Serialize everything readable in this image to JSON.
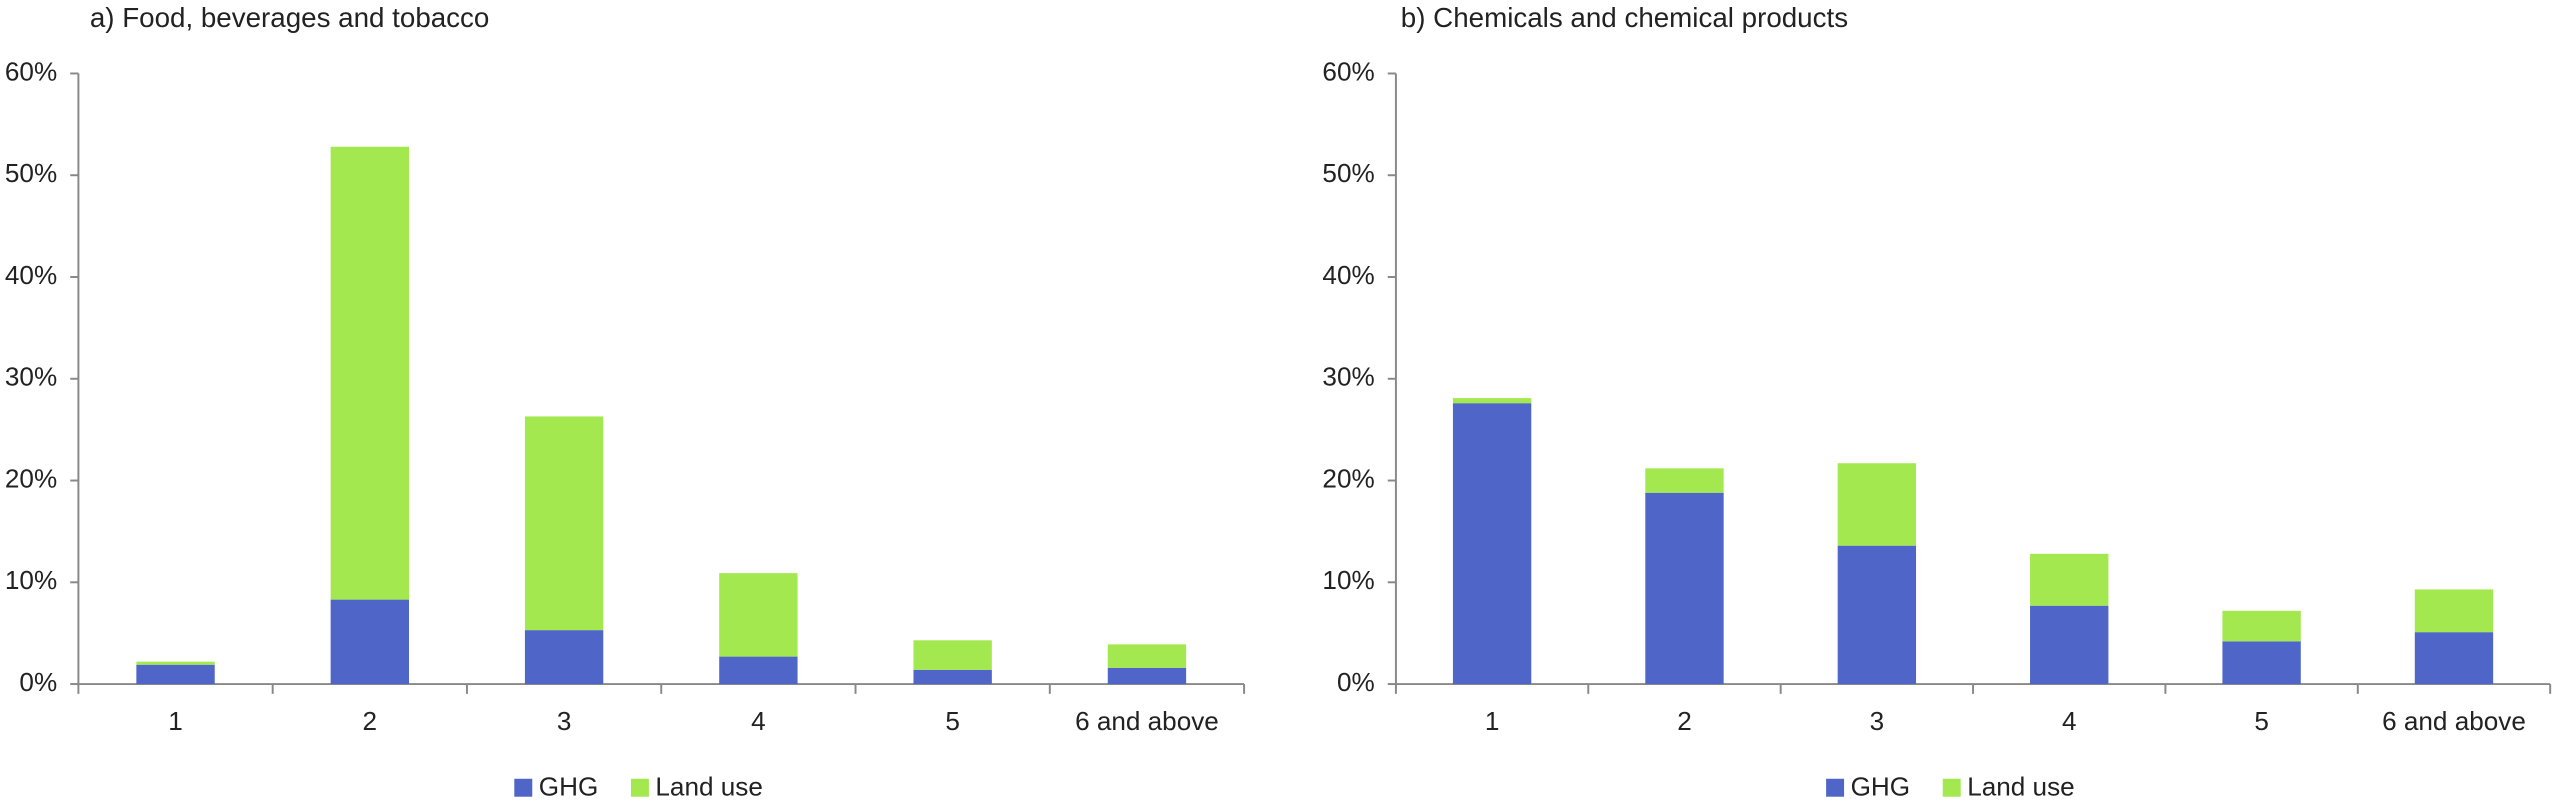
{
  "chart_data": [
    {
      "type": "bar",
      "stacked": true,
      "title": "a) Food, beverages and tobacco",
      "categories": [
        "1",
        "2",
        "3",
        "4",
        "5",
        "6 and above"
      ],
      "series": [
        {
          "name": "GHG",
          "color": "#4f66c8",
          "values": [
            1.9,
            8.3,
            5.3,
            2.7,
            1.4,
            1.6
          ]
        },
        {
          "name": "Land use",
          "color": "#a3e84f",
          "values": [
            0.3,
            44.5,
            21.0,
            8.2,
            2.9,
            2.3
          ]
        }
      ],
      "ylim": [
        0,
        60
      ],
      "yticks": [
        {
          "value": 0,
          "label": "0%"
        },
        {
          "value": 10,
          "label": "10%"
        },
        {
          "value": 20,
          "label": "20%"
        },
        {
          "value": 30,
          "label": "30%"
        },
        {
          "value": 40,
          "label": "40%"
        },
        {
          "value": 50,
          "label": "50%"
        },
        {
          "value": 60,
          "label": "60%"
        }
      ],
      "grid": false,
      "legend": "bottom"
    },
    {
      "type": "bar",
      "stacked": true,
      "title": "b) Chemicals and chemical products",
      "categories": [
        "1",
        "2",
        "3",
        "4",
        "5",
        "6 and above"
      ],
      "series": [
        {
          "name": "GHG",
          "color": "#4f66c8",
          "values": [
            27.6,
            18.8,
            13.6,
            7.7,
            4.2,
            5.1
          ]
        },
        {
          "name": "Land use",
          "color": "#a3e84f",
          "values": [
            0.5,
            2.4,
            8.1,
            5.1,
            3.0,
            4.2
          ]
        }
      ],
      "ylim": [
        0,
        60
      ],
      "yticks": [
        {
          "value": 0,
          "label": "0%"
        },
        {
          "value": 10,
          "label": "10%"
        },
        {
          "value": 20,
          "label": "20%"
        },
        {
          "value": 30,
          "label": "30%"
        },
        {
          "value": 40,
          "label": "40%"
        },
        {
          "value": 50,
          "label": "50%"
        },
        {
          "value": 60,
          "label": "60%"
        }
      ],
      "grid": false,
      "legend": "bottom"
    }
  ]
}
